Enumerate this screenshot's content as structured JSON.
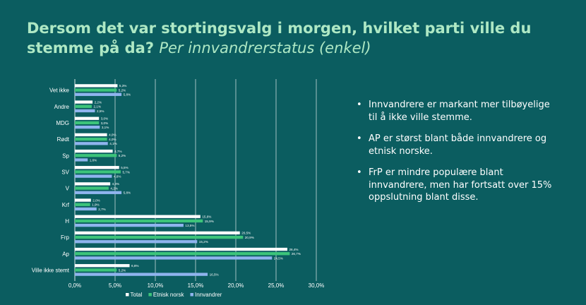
{
  "title": {
    "main": "Dersom det var stortingsvalg i morgen, hvilket parti ville du stemme på da?",
    "sub": "Per innvandrerstatus (enkel)"
  },
  "bullets": [
    "Innvandrere er markant mer tilbøyelige til å ikke ville stemme.",
    "AP er størst blant både innvandrere og etnisk norske.",
    "FrP er mindre populære blant innvandrere, men har fortsatt over 15% oppslutning blant disse."
  ],
  "colors": {
    "background": "#0b5d60",
    "title": "#aee8c4",
    "total": "#ffffff",
    "etnisk": "#3cc47a",
    "innvandrer": "#8fb4ee"
  },
  "chart_data": {
    "type": "bar",
    "orientation": "horizontal",
    "categories": [
      "Vet ikke",
      "Andre",
      "MDG",
      "Rødt",
      "Sp",
      "SV",
      "V",
      "Krf",
      "H",
      "Frp",
      "Ap",
      "Ville ikke stemt"
    ],
    "series": [
      {
        "name": "Total",
        "color": "#ffffff",
        "values": [
          5.3,
          2.2,
          3.0,
          4.0,
          4.7,
          5.5,
          4.4,
          2.0,
          15.6,
          20.5,
          26.4,
          6.8
        ],
        "labels": [
          "5,3%",
          "2,2%",
          "3,0%",
          "4,0%",
          "4,7%",
          "5,5%",
          "4,4%",
          "2,0%",
          "15,6%",
          "20,5%",
          "26,4%",
          "6,8%"
        ]
      },
      {
        "name": "Etnisk norsk",
        "color": "#3cc47a",
        "values": [
          5.2,
          2.1,
          3.0,
          4.0,
          5.2,
          5.7,
          4.2,
          1.9,
          15.9,
          20.9,
          26.7,
          5.2
        ],
        "labels": [
          "5,2%",
          "2,1%",
          "3,0%",
          "4,0%",
          "5,2%",
          "5,7%",
          "4,2%",
          "1,9%",
          "15,9%",
          "20,9%",
          "26,7%",
          "5,2%"
        ]
      },
      {
        "name": "Innvandrer",
        "color": "#8fb4ee",
        "values": [
          5.8,
          2.5,
          3.1,
          4.1,
          1.6,
          4.6,
          5.8,
          2.7,
          13.5,
          15.2,
          24.5,
          16.5
        ],
        "labels": [
          "5,8%",
          "2,5%",
          "3,1%",
          "4,1%",
          "1,6%",
          "4,6%",
          "5,8%",
          "2,7%",
          "13,5%",
          "15,2%",
          "24,5%",
          "16,5%"
        ]
      }
    ],
    "xlim": [
      0,
      30
    ],
    "xticks": [
      0,
      5,
      10,
      15,
      20,
      25,
      30
    ],
    "xtick_labels": [
      "0,0%",
      "5,0%",
      "10,0%",
      "15,0%",
      "20,0%",
      "25,0%",
      "30,0%"
    ],
    "grid": "vertical",
    "legend": "bottom"
  }
}
